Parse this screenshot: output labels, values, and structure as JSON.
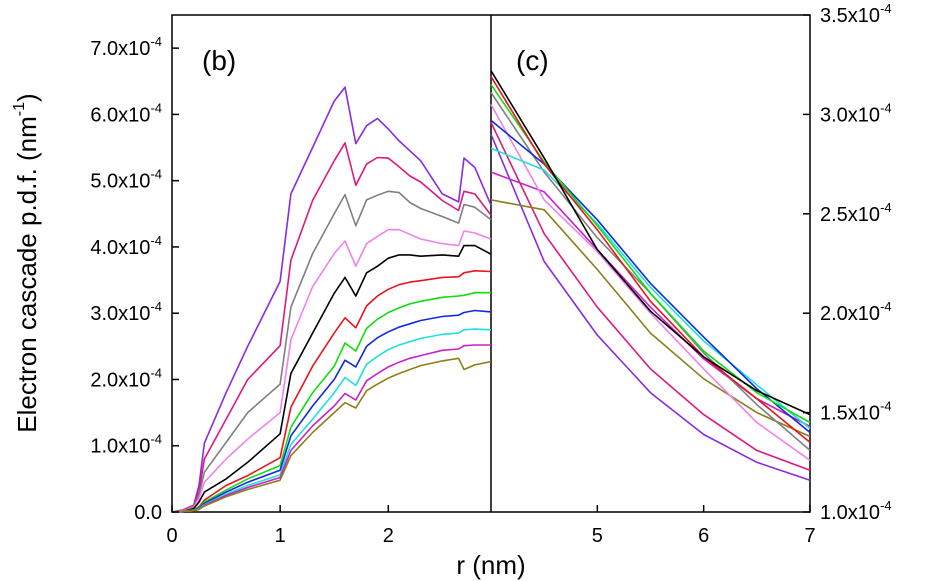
{
  "chart_data": [
    {
      "panel": "(b)",
      "type": "line",
      "ylabel": "Electron cascade p.d.f. (nm",
      "ylabel_sup": "-1",
      "ylabel_close": ")",
      "xlabel": "r (nm)",
      "xlim": [
        0,
        2.95
      ],
      "ylim": [
        0,
        0.00075
      ],
      "xticks": [
        0,
        1,
        2
      ],
      "xtick_labels": [
        "0",
        "1",
        "2"
      ],
      "yticks": [
        0,
        0.0001,
        0.0002,
        0.0003,
        0.0004,
        0.0005,
        0.0006,
        0.0007
      ],
      "ytick_labels": [
        {
          "base": "0.0",
          "exp": ""
        },
        {
          "base": "1.0x10",
          "exp": "-4"
        },
        {
          "base": "2.0x10",
          "exp": "-4"
        },
        {
          "base": "3.0x10",
          "exp": "-4"
        },
        {
          "base": "4.0x10",
          "exp": "-4"
        },
        {
          "base": "5.0x10",
          "exp": "-4"
        },
        {
          "base": "6.0x10",
          "exp": "-4"
        },
        {
          "base": "7.0x10",
          "exp": "-4"
        }
      ],
      "x": [
        0,
        0.1,
        0.2,
        0.25,
        0.3,
        0.5,
        0.7,
        1.0,
        1.1,
        1.3,
        1.5,
        1.6,
        1.7,
        1.8,
        1.9,
        2.0,
        2.1,
        2.2,
        2.3,
        2.5,
        2.65,
        2.7,
        2.8,
        2.95
      ],
      "series": [
        {
          "name": "purple",
          "color": "#8a2be2",
          "values": [
            0,
            3e-06,
            1e-05,
            4e-05,
            0.000104,
            0.00018,
            0.00025,
            0.000348,
            0.00048,
            0.00055,
            0.00062,
            0.000641,
            0.000556,
            0.000583,
            0.000594,
            0.000578,
            0.00056,
            0.000545,
            0.00053,
            0.00048,
            0.000468,
            0.000534,
            0.00052,
            0.000463
          ]
        },
        {
          "name": "magenta",
          "color": "#e0187d",
          "values": [
            0,
            3e-06,
            1e-05,
            3e-05,
            8e-05,
            0.00014,
            0.0002,
            0.000251,
            0.00038,
            0.00047,
            0.00053,
            0.000557,
            0.000493,
            0.000525,
            0.000535,
            0.000534,
            0.000521,
            0.000507,
            0.000498,
            0.00047,
            0.000455,
            0.000484,
            0.00048,
            0.000448
          ]
        },
        {
          "name": "gray",
          "color": "#808080",
          "values": [
            0,
            2e-06,
            8e-06,
            2.5e-05,
            6e-05,
            0.000105,
            0.00015,
            0.000193,
            0.000309,
            0.00039,
            0.00045,
            0.000479,
            0.000432,
            0.000471,
            0.000478,
            0.000484,
            0.000482,
            0.000467,
            0.000458,
            0.000446,
            0.000436,
            0.000464,
            0.00046,
            0.000441
          ]
        },
        {
          "name": "pink",
          "color": "#ee82ee",
          "values": [
            0,
            2e-06,
            7e-06,
            2e-05,
            4.5e-05,
            8e-05,
            0.00011,
            0.00015,
            0.00026,
            0.00034,
            0.00039,
            0.000409,
            0.000371,
            0.000405,
            0.000416,
            0.000426,
            0.000426,
            0.000419,
            0.000412,
            0.000405,
            0.000402,
            0.000424,
            0.000421,
            0.000412
          ]
        },
        {
          "name": "black",
          "color": "#000000",
          "values": [
            0,
            1e-06,
            5e-06,
            1.5e-05,
            3e-05,
            5e-05,
            7.5e-05,
            0.000118,
            0.000209,
            0.00027,
            0.00033,
            0.000354,
            0.000326,
            0.000361,
            0.000371,
            0.000383,
            0.000388,
            0.000388,
            0.000386,
            0.000388,
            0.000386,
            0.000402,
            0.000402,
            0.000389
          ]
        },
        {
          "name": "red",
          "color": "#e8141e",
          "values": [
            0,
            1e-06,
            3e-06,
            8e-06,
            1.8e-05,
            4e-05,
            5.5e-05,
            8.2e-05,
            0.000158,
            0.00022,
            0.00027,
            0.000293,
            0.000278,
            0.000311,
            0.000326,
            0.000336,
            0.000343,
            0.000347,
            0.000349,
            0.000354,
            0.000355,
            0.000361,
            0.000364,
            0.000363
          ]
        },
        {
          "name": "green",
          "color": "#11dd11",
          "values": [
            0,
            1e-06,
            3e-06,
            7e-06,
            1.5e-05,
            3.3e-05,
            5e-05,
            7e-05,
            0.000128,
            0.00018,
            0.00022,
            0.000255,
            0.000243,
            0.000277,
            0.000291,
            0.000301,
            0.000308,
            0.000314,
            0.000318,
            0.000324,
            0.000326,
            0.000327,
            0.000331,
            0.000331
          ]
        },
        {
          "name": "blue",
          "color": "#1029e0",
          "values": [
            0,
            1e-06,
            2e-06,
            6e-06,
            1.3e-05,
            3e-05,
            4.5e-05,
            6.3e-05,
            0.000115,
            0.00016,
            0.0002,
            0.000229,
            0.000219,
            0.00025,
            0.000263,
            0.000272,
            0.000279,
            0.000284,
            0.000289,
            0.000295,
            0.000297,
            0.000301,
            0.000304,
            0.000302
          ]
        },
        {
          "name": "cyan",
          "color": "#1fe0e0",
          "values": [
            0,
            1e-06,
            2e-06,
            5e-06,
            1.1e-05,
            2.7e-05,
            4e-05,
            5.6e-05,
            0.000102,
            0.00014,
            0.00018,
            0.000203,
            0.000191,
            0.000223,
            0.000235,
            0.000245,
            0.000252,
            0.000257,
            0.000262,
            0.000268,
            0.00027,
            0.000275,
            0.000276,
            0.000275
          ]
        },
        {
          "name": "violet",
          "color": "#cc1fcc",
          "values": [
            0,
            1e-06,
            2e-06,
            4e-06,
            1e-05,
            2.5e-05,
            3.7e-05,
            5.2e-05,
            9.3e-05,
            0.00013,
            0.00016,
            0.000179,
            0.000169,
            0.000198,
            0.000209,
            0.000219,
            0.000226,
            0.000232,
            0.000236,
            0.000244,
            0.000246,
            0.000251,
            0.000252,
            0.000252
          ]
        },
        {
          "name": "olive",
          "color": "#8b7f1a",
          "values": [
            0,
            1e-06,
            2e-06,
            4e-06,
            9e-06,
            2.3e-05,
            3.4e-05,
            4.8e-05,
            8.5e-05,
            0.00012,
            0.00015,
            0.000165,
            0.000157,
            0.000183,
            0.000193,
            0.000202,
            0.000209,
            0.000215,
            0.000221,
            0.000228,
            0.000232,
            0.000215,
            0.000222,
            0.000227
          ]
        }
      ]
    },
    {
      "panel": "(c)",
      "type": "line",
      "xlim": [
        4.0,
        7.0
      ],
      "ylim": [
        0.0001,
        0.00035
      ],
      "xticks": [
        5,
        6,
        7
      ],
      "xtick_labels": [
        "5",
        "6",
        "7"
      ],
      "yticks": [
        0.0001,
        0.00015,
        0.0002,
        0.00025,
        0.0003,
        0.00035
      ],
      "ytick_labels": [
        {
          "base": "1.0x10",
          "exp": "-4"
        },
        {
          "base": "1.5x10",
          "exp": "-4"
        },
        {
          "base": "2.0x10",
          "exp": "-4"
        },
        {
          "base": "2.5x10",
          "exp": "-4"
        },
        {
          "base": "3.0x10",
          "exp": "-4"
        },
        {
          "base": "3.5x10",
          "exp": "-4"
        }
      ],
      "x": [
        4.0,
        4.5,
        5.0,
        5.5,
        6.0,
        6.5,
        7.0
      ],
      "series": [
        {
          "name": "purple",
          "color": "#8a2be2",
          "values": [
            0.00029,
            0.000226,
            0.000189,
            0.00016,
            0.000139,
            0.000125,
            0.000116
          ]
        },
        {
          "name": "magenta",
          "color": "#e0187d",
          "values": [
            0.000296,
            0.00024,
            0.000203,
            0.000172,
            0.000149,
            0.000131,
            0.000121
          ]
        },
        {
          "name": "olive",
          "color": "#8b7f1a",
          "values": [
            0.000257,
            0.000252,
            0.000222,
            0.00019,
            0.000167,
            0.00015,
            0.000138
          ]
        },
        {
          "name": "violet",
          "color": "#cc1fcc",
          "values": [
            0.000271,
            0.000261,
            0.000232,
            0.000203,
            0.000177,
            0.000157,
            0.000143
          ]
        },
        {
          "name": "pink",
          "color": "#ee82ee",
          "values": [
            0.000305,
            0.000257,
            0.000231,
            0.0002,
            0.000172,
            0.000145,
            0.000126
          ]
        },
        {
          "name": "gray",
          "color": "#808080",
          "values": [
            0.000311,
            0.000271,
            0.000238,
            0.00021,
            0.00018,
            0.000154,
            0.000131
          ]
        },
        {
          "name": "cyan",
          "color": "#1fe0e0",
          "values": [
            0.000283,
            0.000272,
            0.000245,
            0.000213,
            0.000186,
            0.000164,
            0.000142
          ]
        },
        {
          "name": "blue",
          "color": "#1029e0",
          "values": [
            0.000297,
            0.000275,
            0.000247,
            0.000215,
            0.000188,
            0.000162,
            0.00014
          ]
        },
        {
          "name": "green",
          "color": "#11dd11",
          "values": [
            0.000315,
            0.000276,
            0.000244,
            0.00021,
            0.000181,
            0.00016,
            0.000145
          ]
        },
        {
          "name": "red",
          "color": "#e8141e",
          "values": [
            0.000319,
            0.000275,
            0.000242,
            0.000206,
            0.000178,
            0.000157,
            0.000135
          ]
        },
        {
          "name": "black",
          "color": "#000000",
          "values": [
            0.000322,
            0.000278,
            0.000232,
            0.000201,
            0.000178,
            0.000161,
            0.000149
          ]
        }
      ]
    }
  ]
}
